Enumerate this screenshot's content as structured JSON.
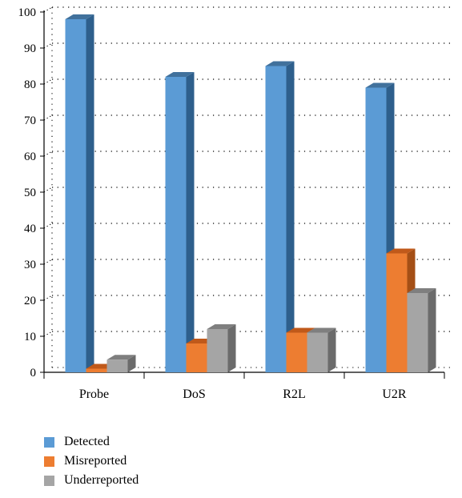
{
  "chart_data": {
    "type": "bar",
    "title": "",
    "xlabel": "",
    "ylabel": "",
    "categories": [
      "Probe",
      "DoS",
      "R2L",
      "U2R"
    ],
    "series": [
      {
        "name": "Detected",
        "color": "#5b9bd5",
        "side_color": "#2e5f8c",
        "top_color": "#41719c",
        "values": [
          98,
          82,
          85,
          79
        ]
      },
      {
        "name": "Misreported",
        "color": "#ed7d31",
        "side_color": "#a44f16",
        "top_color": "#c0591a",
        "values": [
          1,
          8,
          11,
          33
        ]
      },
      {
        "name": "Underreported",
        "color": "#a5a5a5",
        "side_color": "#6b6b6b",
        "top_color": "#7f7f7f",
        "values": [
          3.5,
          12,
          11,
          22
        ]
      }
    ],
    "ylim": [
      0,
      100
    ],
    "yticks": [
      0,
      10,
      20,
      30,
      40,
      50,
      60,
      70,
      80,
      90,
      100
    ],
    "grid": true,
    "legend_position": "bottom-left",
    "style": "3d-column"
  }
}
